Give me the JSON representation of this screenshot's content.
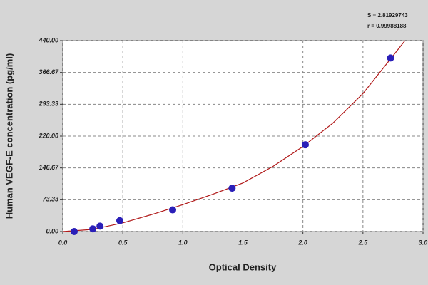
{
  "chart_data": {
    "type": "scatter",
    "xlabel": "Optical Density",
    "ylabel": "Human VEGF-E concentration (pg/ml)",
    "annotations": [
      "S = 2.81929743",
      "r = 0.99988188"
    ],
    "x": [
      0.095,
      0.25,
      0.31,
      0.475,
      0.915,
      1.41,
      2.02,
      2.73
    ],
    "values": [
      0,
      6.25,
      12.5,
      25,
      50,
      100,
      200,
      400
    ],
    "color": "#2a1fb8",
    "fit": {
      "color": "#b01818",
      "x": [
        0,
        0.25,
        0.5,
        0.75,
        1,
        1.25,
        1.5,
        1.75,
        2,
        2.25,
        2.5,
        2.75,
        2.85
      ],
      "values": [
        0,
        5,
        20,
        40,
        62,
        86,
        112,
        150,
        196,
        250,
        318,
        405,
        440
      ]
    },
    "xlim": [
      0,
      3
    ],
    "ylim": [
      0,
      440
    ],
    "xticks": [
      {
        "value": 0,
        "label": "0.0"
      },
      0.5,
      {
        "value": 1,
        "label": "1.0"
      },
      1.5,
      {
        "value": 2,
        "label": "2.0"
      },
      2.5,
      {
        "value": 3,
        "label": "3.0"
      }
    ],
    "yticks": [
      {
        "value": 0,
        "label": "0.00"
      },
      73.33,
      146.67,
      {
        "value": 220,
        "label": "220.00"
      },
      293.33,
      366.67,
      {
        "value": 440,
        "label": "440.00"
      }
    ],
    "grid": true
  }
}
